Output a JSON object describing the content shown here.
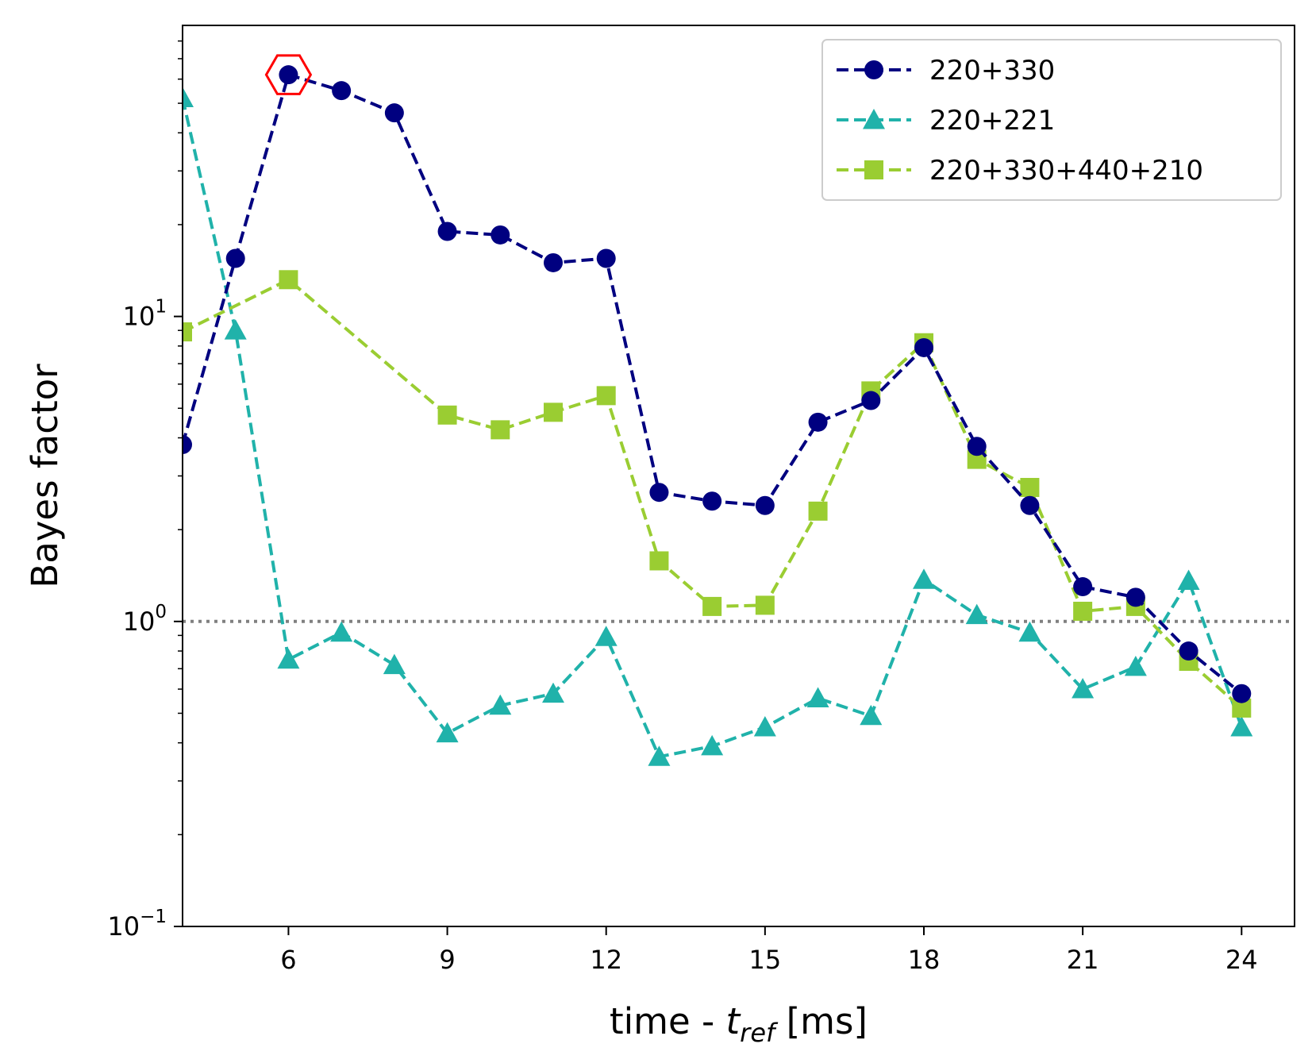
{
  "chart_data": {
    "type": "line",
    "title": "",
    "xlabel": {
      "prefix": "time - ",
      "var": "t",
      "sub": "ref",
      "suffix": " [ms]"
    },
    "ylabel": "Bayes factor",
    "y_scale": "log",
    "xlim": [
      4,
      25
    ],
    "ylim": [
      0.1,
      90
    ],
    "x_ticks": [
      6,
      9,
      12,
      15,
      18,
      21,
      24
    ],
    "y_ticks": [
      {
        "value": 0.1,
        "base": "10",
        "exp": "−1"
      },
      {
        "value": 1,
        "base": "10",
        "exp": "0"
      },
      {
        "value": 10,
        "base": "10",
        "exp": "1"
      }
    ],
    "reference_line": {
      "y": 1,
      "style": "dotted",
      "color": "#808080"
    },
    "highlight": {
      "series": "220+330",
      "x": 6,
      "y": 62,
      "marker": "hexagon",
      "color": "#ff0000"
    },
    "legend_position": "top-right",
    "grid": false,
    "series": [
      {
        "name": "220+330",
        "color": "#000080",
        "marker": "circle",
        "x": [
          4,
          5,
          6,
          7,
          8,
          9,
          10,
          11,
          12,
          13,
          14,
          15,
          16,
          17,
          18,
          19,
          20,
          21,
          22,
          23,
          24
        ],
        "y": [
          3.8,
          15.5,
          62,
          55,
          46.5,
          19,
          18.5,
          15,
          15.5,
          2.65,
          2.48,
          2.4,
          4.5,
          5.3,
          7.9,
          3.75,
          2.4,
          1.3,
          1.2,
          0.8,
          0.58
        ]
      },
      {
        "name": "220+221",
        "color": "#20b2aa",
        "marker": "triangle",
        "x": [
          4,
          5,
          6,
          7,
          8,
          9,
          10,
          11,
          12,
          13,
          14,
          15,
          16,
          17,
          18,
          19,
          20,
          21,
          22,
          23,
          24
        ],
        "y": [
          52,
          9,
          0.75,
          0.92,
          0.72,
          0.43,
          0.53,
          0.58,
          0.89,
          0.36,
          0.39,
          0.45,
          0.56,
          0.49,
          1.37,
          1.05,
          0.92,
          0.6,
          0.71,
          1.36,
          0.45
        ]
      },
      {
        "name": "220+330+440+210",
        "color": "#9acd32",
        "marker": "square",
        "x": [
          4,
          6,
          9,
          10,
          11,
          12,
          13,
          14,
          15,
          16,
          17,
          18,
          19,
          20,
          21,
          22,
          23,
          24
        ],
        "y": [
          8.9,
          13.2,
          4.75,
          4.25,
          4.85,
          5.5,
          1.58,
          1.12,
          1.13,
          2.3,
          5.7,
          8.2,
          3.4,
          2.75,
          1.08,
          1.12,
          0.74,
          0.52
        ]
      }
    ]
  }
}
